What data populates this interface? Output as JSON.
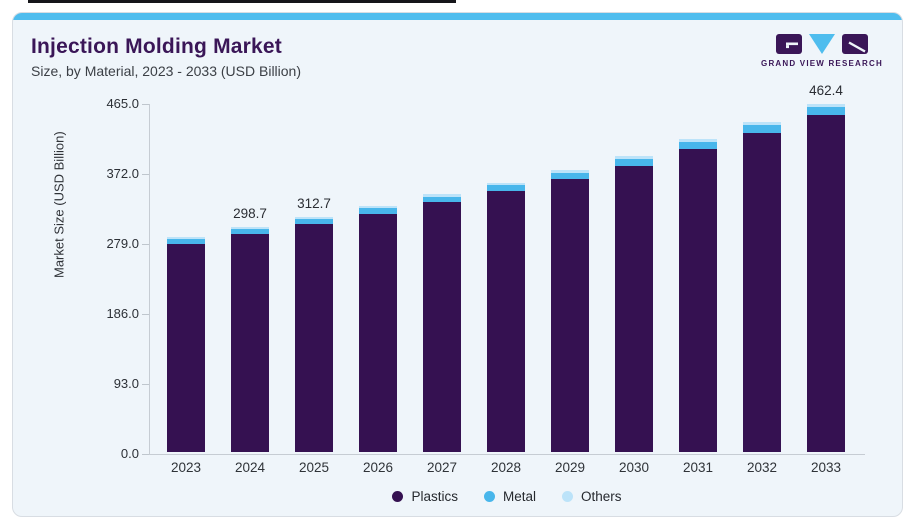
{
  "page": {
    "top_line_color": "#16161a"
  },
  "card": {
    "background": "#eff5fa",
    "accent_color": "#4fbdee",
    "border_color": "#d8dde3"
  },
  "header": {
    "title": "Injection Molding Market",
    "subtitle": "Size, by Material, 2023 - 2033 (USD Billion)",
    "title_color": "#3a1657"
  },
  "logo": {
    "caption": "GRAND VIEW RESEARCH",
    "purple": "#3a1657",
    "blue": "#4fbdee"
  },
  "chart_data": {
    "type": "bar",
    "stacked": true,
    "title": "Injection Molding Market",
    "subtitle": "Size, by Material, 2023 - 2033 (USD Billion)",
    "xlabel": "",
    "ylabel": "Market Size (USD Billion)",
    "ylim": [
      0,
      465
    ],
    "ytick_labels": [
      "465.0",
      "372.0",
      "279.0",
      "186.0",
      "93.0",
      "0.0"
    ],
    "grid": false,
    "legend_position": "bottom",
    "categories": [
      "2023",
      "2024",
      "2025",
      "2026",
      "2027",
      "2028",
      "2029",
      "2030",
      "2031",
      "2032",
      "2033"
    ],
    "totals": [
      285.2,
      298.7,
      312.7,
      327.2,
      342.4,
      358.0,
      374.4,
      392.9,
      416.0,
      438.3,
      462.4
    ],
    "bar_labels": [
      "",
      "298.7",
      "312.7",
      "",
      "",
      "",
      "",
      "",
      "",
      "",
      "462.4"
    ],
    "series": [
      {
        "name": "Plastics",
        "color": "#351151",
        "values": [
          276.1,
          289.1,
          302.7,
          316.8,
          331.6,
          346.6,
          362.4,
          380.4,
          402.6,
          424.3,
          447.6
        ]
      },
      {
        "name": "Metal",
        "color": "#48b6eb",
        "values": [
          6.3,
          6.6,
          6.9,
          7.2,
          7.5,
          7.9,
          8.2,
          8.6,
          9.2,
          9.6,
          10.2
        ]
      },
      {
        "name": "Others",
        "color": "#bce3f9",
        "values": [
          2.8,
          3.0,
          3.1,
          3.2,
          3.3,
          3.5,
          3.8,
          3.9,
          4.2,
          4.4,
          4.6
        ]
      }
    ],
    "axis_color": "#c6ccd3",
    "label_color": "#2a2d33"
  }
}
